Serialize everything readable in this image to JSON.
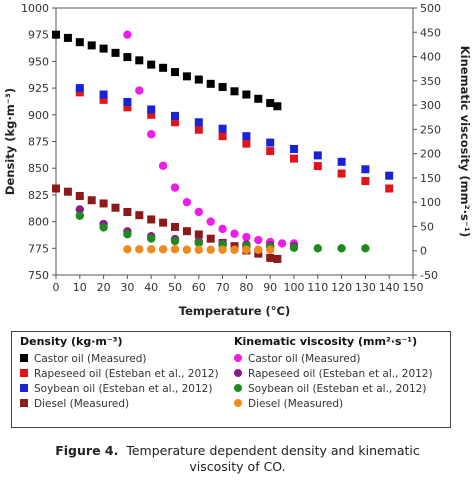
{
  "chart_data": {
    "type": "scatter",
    "xlabel": "Temperature (°C)",
    "ylabel_left": "Density (kg·m⁻³)",
    "ylabel_right": "Kinematic viscosity (mm²·s⁻¹)",
    "xlim": [
      0,
      150
    ],
    "ylim_left": [
      750,
      1000
    ],
    "ylim_right": [
      -50,
      500
    ],
    "x_ticks": [
      0,
      10,
      20,
      30,
      40,
      50,
      60,
      70,
      80,
      90,
      100,
      110,
      120,
      130,
      140,
      150
    ],
    "y_left_ticks": [
      750,
      775,
      800,
      825,
      850,
      875,
      900,
      925,
      950,
      975,
      1000
    ],
    "y_right_ticks": [
      -50,
      0,
      50,
      100,
      150,
      200,
      250,
      300,
      350,
      400,
      450,
      500
    ],
    "series": [
      {
        "name": "Castor oil (Measured)",
        "group": "density",
        "axis": "left",
        "marker": "square",
        "color": "#000000",
        "x": [
          0,
          5,
          10,
          15,
          20,
          25,
          30,
          35,
          40,
          45,
          50,
          55,
          60,
          65,
          70,
          75,
          80,
          85,
          90,
          93
        ],
        "y": [
          975,
          972,
          968,
          965,
          962,
          958,
          954,
          951,
          947,
          944,
          940,
          936,
          933,
          929,
          926,
          922,
          919,
          915,
          911,
          908
        ]
      },
      {
        "name": "Rapeseed oil (Esteban et al., 2012)",
        "group": "density",
        "axis": "left",
        "marker": "square",
        "color": "#e0141b",
        "x": [
          10,
          20,
          30,
          40,
          50,
          60,
          70,
          80,
          90,
          100,
          110,
          120,
          130,
          140
        ],
        "y": [
          921,
          914,
          907,
          900,
          893,
          886,
          880,
          873,
          866,
          859,
          852,
          845,
          838,
          831
        ]
      },
      {
        "name": "Soybean oil (Esteban et al., 2012)",
        "group": "density",
        "axis": "left",
        "marker": "square",
        "color": "#1a22d6",
        "x": [
          10,
          20,
          30,
          40,
          50,
          60,
          70,
          80,
          90,
          100,
          110,
          120,
          130,
          140
        ],
        "y": [
          925,
          919,
          912,
          905,
          899,
          893,
          887,
          880,
          874,
          868,
          862,
          856,
          849,
          843
        ]
      },
      {
        "name": "Diesel (Measured)",
        "group": "density",
        "axis": "left",
        "marker": "square",
        "color": "#8b1a1a",
        "x": [
          0,
          5,
          10,
          15,
          20,
          25,
          30,
          35,
          40,
          45,
          50,
          55,
          60,
          65,
          70,
          75,
          80,
          85,
          90,
          93
        ],
        "y": [
          831,
          828,
          824,
          820,
          817,
          813,
          809,
          806,
          802,
          799,
          795,
          791,
          788,
          784,
          780,
          777,
          773,
          770,
          766,
          765
        ]
      },
      {
        "name": "Castor oil (Measured)",
        "group": "viscosity",
        "axis": "right",
        "marker": "circle",
        "color": "#ee1ee8",
        "x": [
          30,
          35,
          40,
          45,
          50,
          55,
          60,
          65,
          70,
          75,
          80,
          85,
          90,
          95,
          100
        ],
        "y": [
          445,
          330,
          240,
          175,
          130,
          100,
          80,
          60,
          45,
          35,
          28,
          22,
          18,
          15,
          15
        ]
      },
      {
        "name": "Rapeseed oil (Esteban et al., 2012)",
        "group": "viscosity",
        "axis": "right",
        "marker": "circle",
        "color": "#8b1a8b",
        "x": [
          10,
          20,
          30,
          40,
          50,
          60,
          70,
          80,
          90,
          100
        ],
        "y": [
          85,
          55,
          40,
          30,
          24,
          19,
          15,
          13,
          11,
          9
        ]
      },
      {
        "name": "Soybean oil (Esteban et al., 2012)",
        "group": "viscosity",
        "axis": "right",
        "marker": "circle",
        "color": "#1f8a1f",
        "x": [
          10,
          20,
          30,
          40,
          50,
          60,
          70,
          80,
          90,
          100,
          110,
          120,
          130
        ],
        "y": [
          72,
          48,
          34,
          25,
          20,
          16,
          13,
          10,
          8,
          6,
          5,
          5,
          5
        ]
      },
      {
        "name": "Diesel (Measured)",
        "group": "viscosity",
        "axis": "right",
        "marker": "circle",
        "color": "#f08a1c",
        "x": [
          30,
          35,
          40,
          45,
          50,
          55,
          60,
          65,
          70,
          75,
          80,
          85,
          90
        ],
        "y": [
          3,
          3,
          3,
          3,
          3,
          2,
          2,
          2,
          2,
          2,
          2,
          2,
          2
        ]
      }
    ]
  },
  "legend": {
    "density_header": "Density (kg·m⁻³)",
    "viscosity_header": "Kinematic viscosity (mm²·s⁻¹)",
    "density_items": [
      {
        "label": "Castor oil (Measured)",
        "color": "#000000"
      },
      {
        "label": "Rapeseed oil (Esteban et al., 2012)",
        "color": "#e0141b"
      },
      {
        "label": "Soybean oil (Esteban et al., 2012)",
        "color": "#1a22d6"
      },
      {
        "label": "Diesel (Measured)",
        "color": "#8b1a1a"
      }
    ],
    "viscosity_items": [
      {
        "label": "Castor oil (Measured)",
        "color": "#ee1ee8"
      },
      {
        "label": "Rapeseed oil (Esteban et al., 2012)",
        "color": "#8b1a8b"
      },
      {
        "label": "Soybean oil (Esteban et al., 2012)",
        "color": "#1f8a1f"
      },
      {
        "label": "Diesel (Measured)",
        "color": "#f08a1c"
      }
    ]
  },
  "caption": {
    "label": "Figure 4.",
    "line1": "Temperature dependent density and kinematic",
    "line2": "viscosity of CO."
  }
}
